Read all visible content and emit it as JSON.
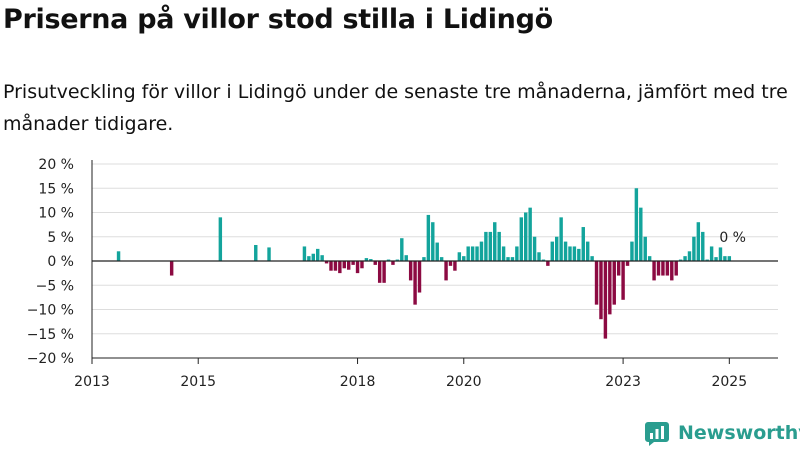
{
  "title": "Priserna på villor stod stilla i Lidingö",
  "subtitle": "Prisutveckling för villor i Lidingö under de senaste tre månaderna, jämfört med tre månader tidigare.",
  "brand": {
    "name": "Newsworthy",
    "icon": "newsworthy-logo-icon"
  },
  "colors": {
    "positive": "#13a49c",
    "negative": "#8c0a42",
    "grid": "#dddddd",
    "axis": "#222222"
  },
  "chart_data": {
    "type": "bar",
    "title": "Priserna på villor stod stilla i Lidingö",
    "xlabel": "",
    "ylabel": "",
    "ylim": [
      -20,
      20
    ],
    "xlim": [
      "2013-01",
      "2025-12"
    ],
    "y_ticks": [
      "20 %",
      "15 %",
      "10 %",
      "5 %",
      "0 %",
      "−5 %",
      "−10 %",
      "−15 %",
      "−20 %"
    ],
    "y_tick_values": [
      20,
      15,
      10,
      5,
      0,
      -5,
      -10,
      -15,
      -20
    ],
    "x_ticks": [
      "2013",
      "2015",
      "2018",
      "2020",
      "2023",
      "2025"
    ],
    "x_tick_dates": [
      "2013-01",
      "2015-01",
      "2018-01",
      "2020-01",
      "2023-01",
      "2025-01"
    ],
    "last_value_label": "0 %",
    "grid": true,
    "legend": "none",
    "points": [
      [
        "2013-07",
        2
      ],
      [
        "2014-07",
        -3
      ],
      [
        "2015-06",
        9
      ],
      [
        "2016-02",
        3.3
      ],
      [
        "2016-05",
        2.8
      ],
      [
        "2017-01",
        3
      ],
      [
        "2017-02",
        1
      ],
      [
        "2017-03",
        1.5
      ],
      [
        "2017-04",
        2.5
      ],
      [
        "2017-05",
        1.2
      ],
      [
        "2017-06",
        -0.5
      ],
      [
        "2017-07",
        -2
      ],
      [
        "2017-08",
        -2
      ],
      [
        "2017-09",
        -2.5
      ],
      [
        "2017-10",
        -1.5
      ],
      [
        "2017-11",
        -1.8
      ],
      [
        "2017-12",
        -0.8
      ],
      [
        "2018-01",
        -2.5
      ],
      [
        "2018-02",
        -1.5
      ],
      [
        "2018-03",
        0.6
      ],
      [
        "2018-04",
        0.4
      ],
      [
        "2018-05",
        -0.8
      ],
      [
        "2018-06",
        -4.5
      ],
      [
        "2018-07",
        -4.5
      ],
      [
        "2018-08",
        0.3
      ],
      [
        "2018-09",
        -0.8
      ],
      [
        "2018-10",
        0.3
      ],
      [
        "2018-11",
        4.7
      ],
      [
        "2018-12",
        1.2
      ],
      [
        "2019-01",
        -4
      ],
      [
        "2019-02",
        -9
      ],
      [
        "2019-03",
        -6.5
      ],
      [
        "2019-04",
        0.8
      ],
      [
        "2019-05",
        9.5
      ],
      [
        "2019-06",
        8
      ],
      [
        "2019-07",
        3.8
      ],
      [
        "2019-08",
        0.8
      ],
      [
        "2019-09",
        -4
      ],
      [
        "2019-10",
        -1
      ],
      [
        "2019-11",
        -2
      ],
      [
        "2019-12",
        1.8
      ],
      [
        "2020-01",
        1
      ],
      [
        "2020-02",
        3
      ],
      [
        "2020-03",
        3
      ],
      [
        "2020-04",
        3
      ],
      [
        "2020-05",
        4
      ],
      [
        "2020-06",
        6
      ],
      [
        "2020-07",
        6
      ],
      [
        "2020-08",
        8
      ],
      [
        "2020-09",
        6
      ],
      [
        "2020-10",
        3
      ],
      [
        "2020-11",
        0.8
      ],
      [
        "2020-12",
        0.8
      ],
      [
        "2021-01",
        3
      ],
      [
        "2021-02",
        9
      ],
      [
        "2021-03",
        10
      ],
      [
        "2021-04",
        11
      ],
      [
        "2021-05",
        5
      ],
      [
        "2021-06",
        1.8
      ],
      [
        "2021-07",
        0.3
      ],
      [
        "2021-08",
        -1
      ],
      [
        "2021-09",
        4
      ],
      [
        "2021-10",
        5
      ],
      [
        "2021-11",
        9
      ],
      [
        "2021-12",
        4
      ],
      [
        "2022-01",
        3
      ],
      [
        "2022-02",
        3
      ],
      [
        "2022-03",
        2.5
      ],
      [
        "2022-04",
        7
      ],
      [
        "2022-05",
        4
      ],
      [
        "2022-06",
        1
      ],
      [
        "2022-07",
        -9
      ],
      [
        "2022-08",
        -12
      ],
      [
        "2022-09",
        -16
      ],
      [
        "2022-10",
        -11
      ],
      [
        "2022-11",
        -9
      ],
      [
        "2022-12",
        -3
      ],
      [
        "2023-01",
        -8
      ],
      [
        "2023-02",
        -1
      ],
      [
        "2023-03",
        4
      ],
      [
        "2023-04",
        15
      ],
      [
        "2023-05",
        11
      ],
      [
        "2023-06",
        5
      ],
      [
        "2023-07",
        1
      ],
      [
        "2023-08",
        -4
      ],
      [
        "2023-09",
        -3
      ],
      [
        "2023-10",
        -3
      ],
      [
        "2023-11",
        -3
      ],
      [
        "2023-12",
        -4
      ],
      [
        "2024-01",
        -3
      ],
      [
        "2024-02",
        0.3
      ],
      [
        "2024-03",
        1
      ],
      [
        "2024-04",
        2
      ],
      [
        "2024-05",
        5
      ],
      [
        "2024-06",
        8
      ],
      [
        "2024-07",
        6
      ],
      [
        "2024-08",
        0.3
      ],
      [
        "2024-09",
        3
      ],
      [
        "2024-10",
        0.8
      ],
      [
        "2024-11",
        2.8
      ],
      [
        "2024-12",
        1
      ],
      [
        "2025-01",
        1
      ]
    ]
  }
}
